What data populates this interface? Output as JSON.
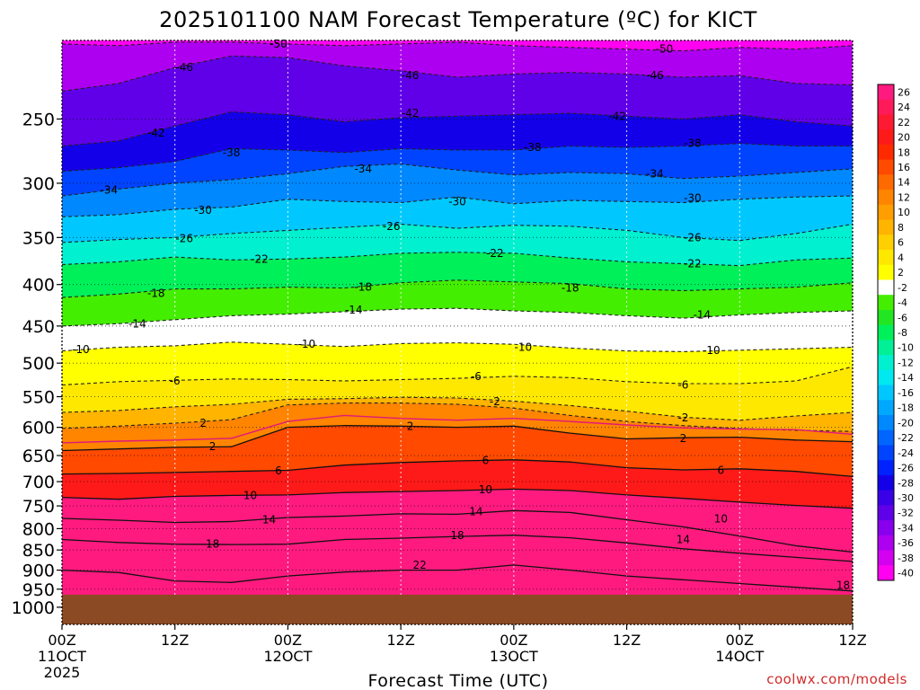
{
  "title": "2025101100 NAM Forecast Temperature (ºC) for KICT",
  "credit": "coolwx.com/models",
  "chart_data": {
    "type": "heatmap",
    "title": "2025101100 NAM Forecast Temperature (ºC) for KICT",
    "xlabel": "Forecast Time (UTC)",
    "ylabel": "",
    "x_ticks": [
      {
        "hour": 0,
        "label": "00Z",
        "sub": "11OCT",
        "sub2": "2025"
      },
      {
        "hour": 12,
        "label": "12Z",
        "sub": "",
        "sub2": ""
      },
      {
        "hour": 24,
        "label": "00Z",
        "sub": "12OCT",
        "sub2": ""
      },
      {
        "hour": 36,
        "label": "12Z",
        "sub": "",
        "sub2": ""
      },
      {
        "hour": 48,
        "label": "00Z",
        "sub": "13OCT",
        "sub2": ""
      },
      {
        "hour": 60,
        "label": "12Z",
        "sub": "",
        "sub2": ""
      },
      {
        "hour": 72,
        "label": "00Z",
        "sub": "14OCT",
        "sub2": ""
      },
      {
        "hour": 84,
        "label": "12Z",
        "sub": "",
        "sub2": ""
      }
    ],
    "x_range_hours": [
      0,
      84
    ],
    "y_pressure_ticks": [
      250,
      300,
      350,
      400,
      450,
      500,
      550,
      600,
      650,
      700,
      750,
      800,
      850,
      900,
      950,
      1000
    ],
    "y_range_hpa": [
      200,
      1050
    ],
    "y_scale": "log-pressure, inverted",
    "grid": true,
    "surface_pressure_hpa": 965,
    "surface_color": "#8b4a24",
    "colorbar": {
      "values": [
        26,
        24,
        22,
        20,
        18,
        16,
        14,
        12,
        10,
        8,
        6,
        4,
        2,
        -2,
        -4,
        -6,
        -8,
        -10,
        -12,
        -14,
        -16,
        -18,
        -20,
        -22,
        -24,
        -26,
        -28,
        -30,
        -32,
        -34,
        -36,
        -38,
        -40
      ],
      "colors": [
        "#ff1a80",
        "#ff1a5a",
        "#ff1a33",
        "#ff1a1a",
        "#ff2a00",
        "#ff4a00",
        "#ff6a00",
        "#ff8400",
        "#ff9e00",
        "#ffb400",
        "#ffcf00",
        "#ffe800",
        "#ffff00",
        "#ffffff",
        "#44ee00",
        "#22e622",
        "#00f05a",
        "#00f098",
        "#00f0d0",
        "#00e8f0",
        "#00c8ff",
        "#00a8ff",
        "#0088ff",
        "#0066ff",
        "#0044ff",
        "#0022ff",
        "#1400e8",
        "#3a00e8",
        "#6000e8",
        "#8800ee",
        "#ae00f0",
        "#d400f0",
        "#ff00f0"
      ]
    },
    "x_hours": [
      0,
      6,
      12,
      18,
      24,
      30,
      36,
      42,
      48,
      54,
      60,
      66,
      72,
      78,
      84
    ],
    "contours_dashed": [
      {
        "value": -50,
        "p": [
          202,
          203,
          201,
          201,
          202,
          203,
          202,
          201,
          203,
          204,
          205,
          206,
          204,
          205,
          203
        ]
      },
      {
        "value": -46,
        "p": [
          231,
          226,
          216,
          209,
          210,
          215,
          218,
          222,
          220,
          219,
          220,
          222,
          221,
          226,
          227
        ]
      },
      {
        "value": -42,
        "p": [
          270,
          266,
          255,
          245,
          247,
          252,
          249,
          248,
          247,
          246,
          248,
          250,
          247,
          252,
          255
        ]
      },
      {
        "value": -38,
        "p": [
          290,
          287,
          282,
          272,
          273,
          275,
          272,
          273,
          273,
          270,
          271,
          270,
          268,
          270,
          270
        ]
      },
      {
        "value": -34,
        "p": [
          311,
          305,
          300,
          297,
          292,
          286,
          284,
          289,
          293,
          291,
          292,
          296,
          294,
          291,
          288
        ]
      },
      {
        "value": -30,
        "p": [
          330,
          328,
          323,
          321,
          314,
          316,
          317,
          312,
          318,
          315,
          316,
          317,
          314,
          312,
          311
        ]
      },
      {
        "value": -26,
        "p": [
          355,
          352,
          350,
          346,
          343,
          340,
          337,
          341,
          338,
          339,
          343,
          350,
          353,
          346,
          337
        ]
      },
      {
        "value": -22,
        "p": [
          378,
          375,
          370,
          373,
          372,
          370,
          366,
          365,
          366,
          371,
          375,
          377,
          379,
          373,
          371
        ]
      },
      {
        "value": -18,
        "p": [
          415,
          411,
          405,
          405,
          403,
          404,
          398,
          395,
          397,
          399,
          405,
          407,
          405,
          403,
          398
        ]
      },
      {
        "value": -14,
        "p": [
          450,
          447,
          442,
          437,
          435,
          432,
          429,
          428,
          431,
          433,
          437,
          440,
          436,
          433,
          431
        ]
      },
      {
        "value": -10,
        "p": [
          483,
          478,
          476,
          471,
          474,
          477,
          473,
          472,
          474,
          479,
          483,
          484,
          482,
          480,
          478
        ]
      },
      {
        "value": -6,
        "p": [
          532,
          527,
          525,
          523,
          524,
          526,
          524,
          522,
          519,
          521,
          527,
          530,
          530,
          526,
          505
        ]
      },
      {
        "value": -2,
        "p": [
          575,
          572,
          566,
          562,
          554,
          553,
          551,
          552,
          557,
          564,
          573,
          583,
          588,
          581,
          575
        ]
      }
    ],
    "contour_dashed_2": {
      "value": 2,
      "p": [
        602,
        598,
        593,
        587,
        563,
        560,
        560,
        562,
        568,
        580,
        590,
        597,
        602,
        605,
        607
      ]
    },
    "contour_magenta": {
      "value": 0,
      "p": [
        627,
        624,
        622,
        619,
        590,
        580,
        585,
        588,
        585,
        590,
        596,
        601,
        603,
        604,
        612
      ]
    },
    "contours_solid": [
      {
        "value": 2,
        "p": [
          641,
          638,
          635,
          634,
          600,
          597,
          598,
          600,
          598,
          610,
          620,
          618,
          617,
          622,
          625
        ]
      },
      {
        "value": 6,
        "p": [
          685,
          684,
          682,
          680,
          678,
          668,
          663,
          660,
          658,
          662,
          673,
          677,
          675,
          680,
          690
        ]
      },
      {
        "value": 10,
        "p": [
          732,
          736,
          730,
          728,
          727,
          722,
          720,
          718,
          715,
          718,
          727,
          734,
          742,
          749,
          755
        ]
      },
      {
        "value": 14,
        "p": [
          777,
          781,
          786,
          784,
          775,
          772,
          767,
          768,
          760,
          764,
          780,
          796,
          817,
          840,
          855
        ]
      },
      {
        "value": 18,
        "p": [
          825,
          832,
          836,
          837,
          836,
          825,
          822,
          818,
          815,
          821,
          833,
          847,
          858,
          868,
          878
        ]
      },
      {
        "value": 22,
        "p": [
          900,
          906,
          928,
          932,
          915,
          905,
          900,
          900,
          887,
          900,
          915,
          925,
          935,
          945,
          955
        ]
      }
    ],
    "contour_labels": [
      {
        "v": "-50",
        "h": 23,
        "p": 202
      },
      {
        "v": "-50",
        "h": 64,
        "p": 205
      },
      {
        "v": "-46",
        "h": 13,
        "p": 216
      },
      {
        "v": "-46",
        "h": 37,
        "p": 221
      },
      {
        "v": "-46",
        "h": 63,
        "p": 221
      },
      {
        "v": "-42",
        "h": 10,
        "p": 260
      },
      {
        "v": "-42",
        "h": 37,
        "p": 246
      },
      {
        "v": "-42",
        "h": 59,
        "p": 248
      },
      {
        "v": "-38",
        "h": 18,
        "p": 275
      },
      {
        "v": "-38",
        "h": 50,
        "p": 271
      },
      {
        "v": "-38",
        "h": 67,
        "p": 268
      },
      {
        "v": "-34",
        "h": 5,
        "p": 306
      },
      {
        "v": "-34",
        "h": 32,
        "p": 288
      },
      {
        "v": "-34",
        "h": 63,
        "p": 292
      },
      {
        "v": "-30",
        "h": 15,
        "p": 324
      },
      {
        "v": "-30",
        "h": 42,
        "p": 316
      },
      {
        "v": "-30",
        "h": 67,
        "p": 313
      },
      {
        "v": "-26",
        "h": 13,
        "p": 351
      },
      {
        "v": "-26",
        "h": 35,
        "p": 339
      },
      {
        "v": "-26",
        "h": 67,
        "p": 350
      },
      {
        "v": "-22",
        "h": 21,
        "p": 372
      },
      {
        "v": "-22",
        "h": 46,
        "p": 366
      },
      {
        "v": "-22",
        "h": 67,
        "p": 377
      },
      {
        "v": "-18",
        "h": 10,
        "p": 410
      },
      {
        "v": "-18",
        "h": 32,
        "p": 403
      },
      {
        "v": "-18",
        "h": 54,
        "p": 404
      },
      {
        "v": "-14",
        "h": 8,
        "p": 447
      },
      {
        "v": "-14",
        "h": 31,
        "p": 430
      },
      {
        "v": "-14",
        "h": 68,
        "p": 436
      },
      {
        "v": "-10",
        "h": 2,
        "p": 481
      },
      {
        "v": "-10",
        "h": 26,
        "p": 474
      },
      {
        "v": "-10",
        "h": 49,
        "p": 478
      },
      {
        "v": "-10",
        "h": 69,
        "p": 482
      },
      {
        "v": "-6",
        "h": 12,
        "p": 526
      },
      {
        "v": "-6",
        "h": 44,
        "p": 519
      },
      {
        "v": "-6",
        "h": 66,
        "p": 532
      },
      {
        "v": "-2",
        "h": 46,
        "p": 558
      },
      {
        "v": "-2",
        "h": 66,
        "p": 584
      },
      {
        "v": "2",
        "h": 15,
        "p": 593
      },
      {
        "v": "2",
        "h": 16,
        "p": 634
      },
      {
        "v": "2",
        "h": 37,
        "p": 598
      },
      {
        "v": "2",
        "h": 66,
        "p": 619
      },
      {
        "v": "6",
        "h": 23,
        "p": 679
      },
      {
        "v": "6",
        "h": 45,
        "p": 659
      },
      {
        "v": "6",
        "h": 70,
        "p": 678
      },
      {
        "v": "10",
        "h": 20,
        "p": 728
      },
      {
        "v": "10",
        "h": 45,
        "p": 716
      },
      {
        "v": "10",
        "h": 70,
        "p": 778
      },
      {
        "v": "14",
        "h": 22,
        "p": 780
      },
      {
        "v": "14",
        "h": 44,
        "p": 762
      },
      {
        "v": "14",
        "h": 66,
        "p": 825
      },
      {
        "v": "18",
        "h": 16,
        "p": 836
      },
      {
        "v": "18",
        "h": 42,
        "p": 816
      },
      {
        "v": "18",
        "h": 83,
        "p": 940
      },
      {
        "v": "22",
        "h": 38,
        "p": 887
      }
    ]
  }
}
